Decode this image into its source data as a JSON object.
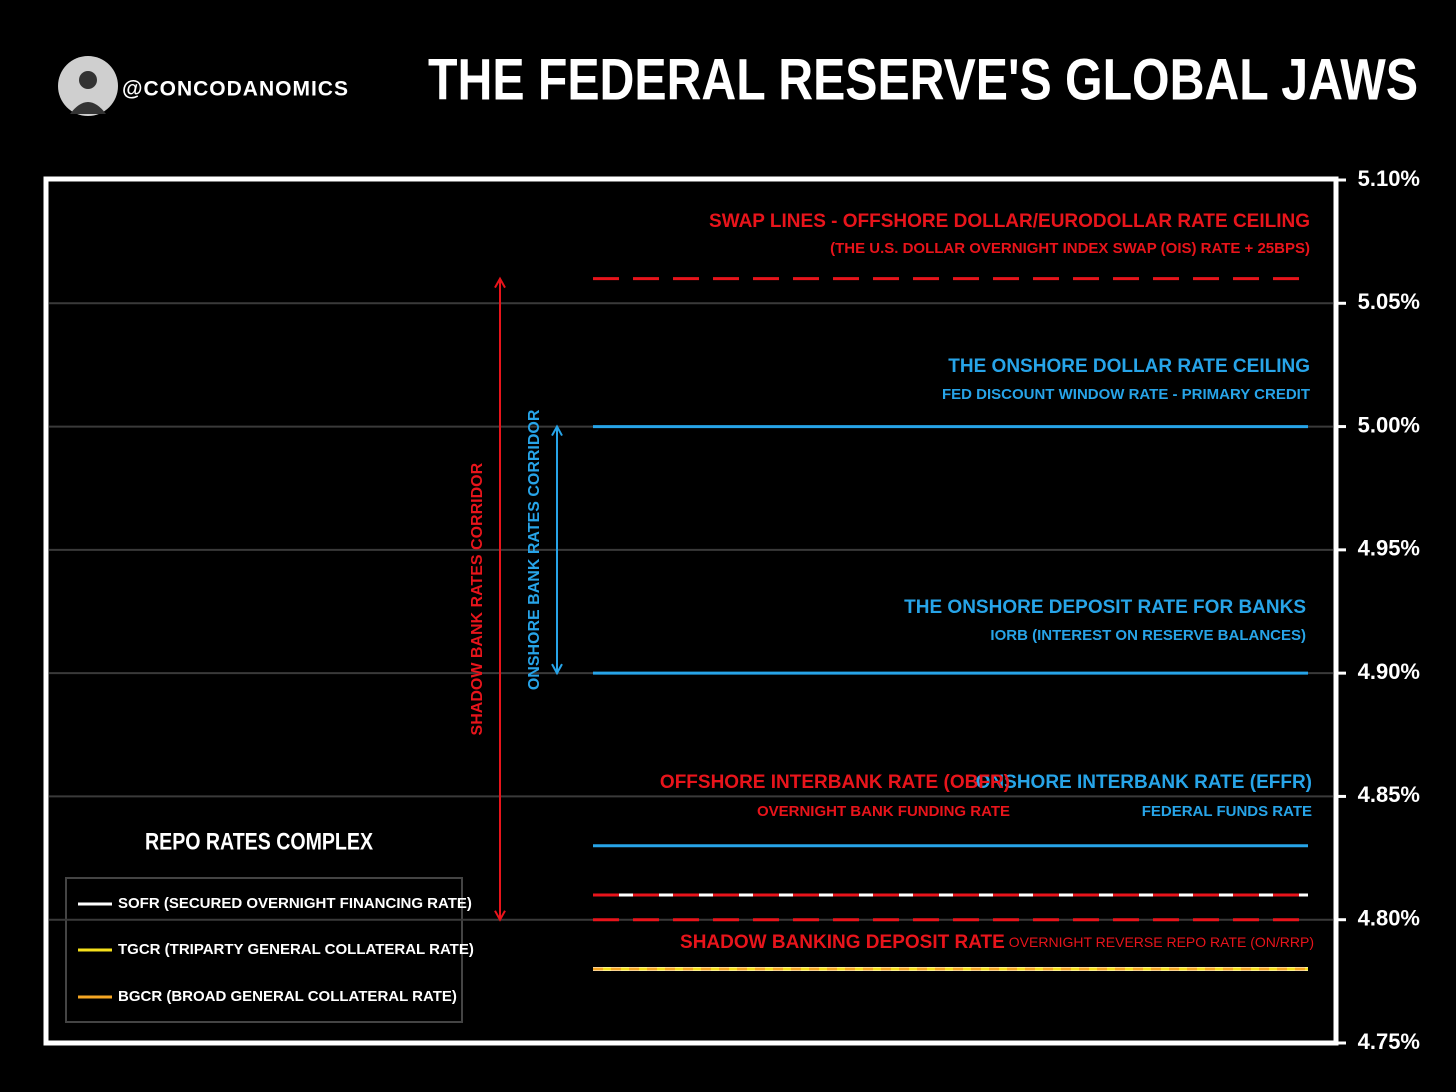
{
  "chart_data": {
    "type": "level",
    "title": "THE FEDERAL RESERVE'S GLOBAL JAWS",
    "handle": "@CONCODANOMICS",
    "ylim": [
      4.75,
      5.1
    ],
    "yticks": [
      {
        "value": 4.75,
        "label": "4.75%"
      },
      {
        "value": 4.8,
        "label": "4.80%"
      },
      {
        "value": 4.85,
        "label": "4.85%"
      },
      {
        "value": 4.9,
        "label": "4.90%"
      },
      {
        "value": 4.95,
        "label": "4.95%"
      },
      {
        "value": 5.0,
        "label": "5.00%"
      },
      {
        "value": 5.05,
        "label": "5.05%"
      },
      {
        "value": 5.1,
        "label": "5.10%"
      }
    ],
    "grid": true,
    "levels": [
      {
        "title": "SWAP LINES - OFFSHORE DOLLAR/EURODOLLAR RATE CEILING",
        "subtitle": "(THE U.S. DOLLAR OVERNIGHT INDEX SWAP (OIS) RATE + 25BPS)",
        "value": 5.06,
        "color": "#e8141b",
        "dashed": true
      },
      {
        "title": "THE ONSHORE DOLLAR RATE CEILING",
        "subtitle": "FED DISCOUNT WINDOW RATE - PRIMARY CREDIT",
        "value": 5.0,
        "color": "#27a4e8",
        "dashed": false
      },
      {
        "title": "THE ONSHORE DEPOSIT RATE FOR BANKS",
        "subtitle": "IORB (INTEREST ON RESERVE BALANCES)",
        "value": 4.9,
        "color": "#27a4e8",
        "dashed": false
      },
      {
        "title": "ONSHORE INTERBANK RATE (EFFR)",
        "subtitle": "FEDERAL FUNDS RATE",
        "value": 4.83,
        "color": "#27a4e8",
        "dashed": false
      },
      {
        "title": "OFFSHORE INTERBANK RATE (OBFR)",
        "subtitle": "OVERNIGHT BANK FUNDING RATE",
        "value": 4.81,
        "color": "#e8141b",
        "dashed": true
      },
      {
        "title": "SHADOW BANKING DEPOSIT RATE",
        "subtitle": "OVERNIGHT REVERSE REPO RATE (ON/RRP)",
        "value": 4.8,
        "color": "#e8141b",
        "dashed": true
      }
    ],
    "corridors": [
      {
        "label": "SHADOW BANK RATES CORRIDOR",
        "from": 4.8,
        "to": 5.06,
        "color": "#e8141b"
      },
      {
        "label": "ONSHORE BANK RATES CORRIDOR",
        "from": 4.9,
        "to": 5.0,
        "color": "#27a4e8"
      }
    ],
    "legend": {
      "title": "REPO RATES COMPLEX",
      "series": [
        {
          "name": "SOFR (SECURED OVERNIGHT FINANCING RATE)",
          "color": "#ffffff",
          "value": 4.78
        },
        {
          "name": "TGCR (TRIPARTY GENERAL COLLATERAL RATE)",
          "color": "#f5e01b",
          "value": 4.78
        },
        {
          "name": "BGCR (BROAD GENERAL COLLATERAL RATE)",
          "color": "#f5a623",
          "value": 4.78
        }
      ]
    }
  }
}
